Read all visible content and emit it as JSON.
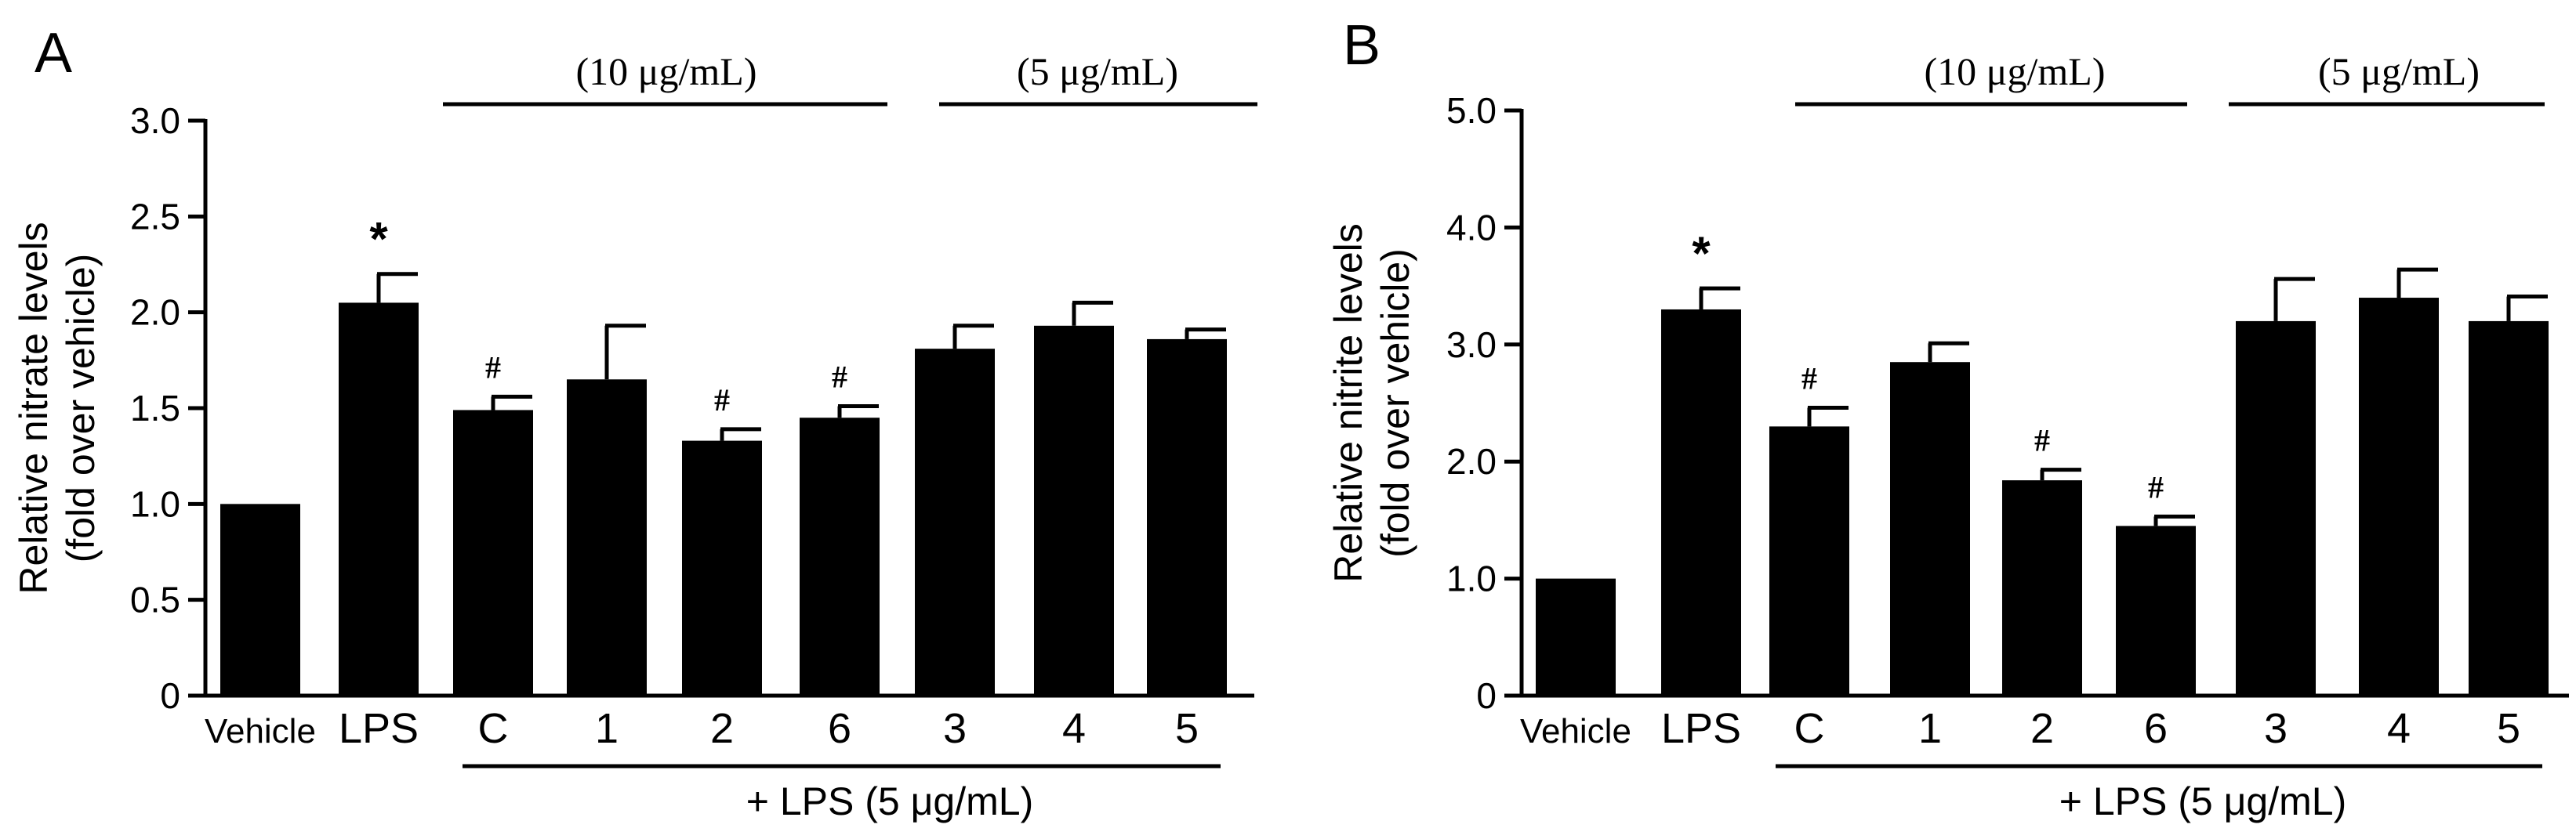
{
  "colors": {
    "bar": "#000000",
    "axis": "#000000",
    "text": "#000000",
    "background": "#ffffff"
  },
  "chart_data": [
    {
      "type": "bar",
      "panel_label": "A",
      "ylabel_line1": "Relative nitrate levels",
      "ylabel_line2": "(fold over vehicle)",
      "ylim": [
        0,
        3.0
      ],
      "yticks": [
        0,
        0.5,
        1.0,
        1.5,
        2.0,
        2.5,
        3.0
      ],
      "ytick_labels": [
        "0",
        "0.5",
        "1.0",
        "1.5",
        "2.0",
        "2.5",
        "3.0"
      ],
      "categories": [
        "Vehicle",
        "LPS",
        "C",
        "1",
        "2",
        "6",
        "3",
        "4",
        "5"
      ],
      "values": [
        1.0,
        2.05,
        1.49,
        1.65,
        1.33,
        1.45,
        1.81,
        1.93,
        1.86
      ],
      "errors": [
        0,
        0.15,
        0.07,
        0.28,
        0.06,
        0.06,
        0.12,
        0.12,
        0.05
      ],
      "annotations": [
        "",
        "*",
        "#",
        "",
        "#",
        "#",
        "",
        "",
        ""
      ],
      "groups": [
        {
          "label": "(10 μg/mL)",
          "from": 2,
          "to": 5
        },
        {
          "label": "(5 μg/mL)",
          "from": 6,
          "to": 8
        }
      ],
      "bottom_group": {
        "label": "+ LPS (5 μg/mL)",
        "from": 2,
        "to": 8
      }
    },
    {
      "type": "bar",
      "panel_label": "B",
      "ylabel_line1": "Relative nitrite  levels",
      "ylabel_line2": "(fold over vehicle)",
      "ylim": [
        0,
        5.0
      ],
      "yticks": [
        0,
        1.0,
        2.0,
        3.0,
        4.0,
        5.0
      ],
      "ytick_labels": [
        "0",
        "1.0",
        "2.0",
        "3.0",
        "4.0",
        "5.0"
      ],
      "categories": [
        "Vehicle",
        "LPS",
        "C",
        "1",
        "2",
        "6",
        "3",
        "4",
        "5"
      ],
      "values": [
        1.0,
        3.3,
        2.3,
        2.85,
        1.84,
        1.45,
        3.2,
        3.4,
        3.2
      ],
      "errors": [
        0,
        0.18,
        0.16,
        0.16,
        0.09,
        0.08,
        0.36,
        0.24,
        0.21
      ],
      "annotations": [
        "",
        "*",
        "#",
        "",
        "#",
        "#",
        "",
        "",
        ""
      ],
      "groups": [
        {
          "label": "(10 μg/mL)",
          "from": 2,
          "to": 5
        },
        {
          "label": "(5 μg/mL)",
          "from": 6,
          "to": 8
        }
      ],
      "bottom_group": {
        "label": "+ LPS (5 μg/mL)",
        "from": 2,
        "to": 8
      }
    }
  ]
}
